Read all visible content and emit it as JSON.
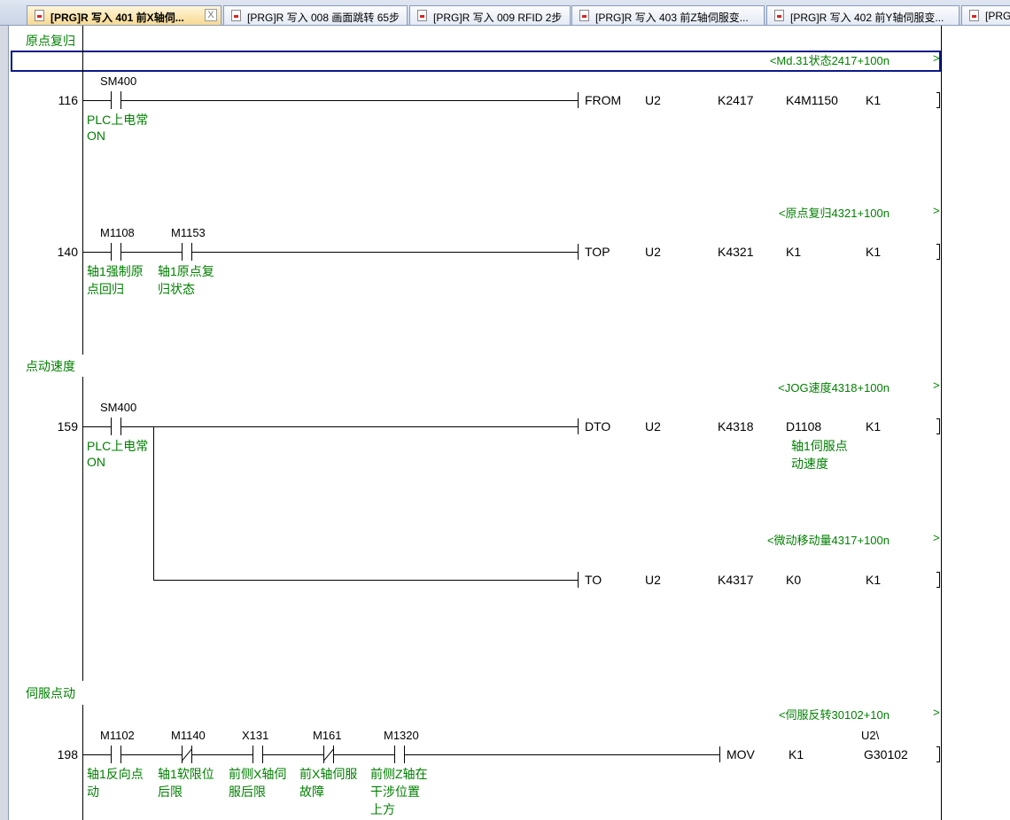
{
  "tabs": [
    {
      "label": "[PRG]R 写入 401 前X轴伺...",
      "active": true,
      "close": "X"
    },
    {
      "label": "[PRG]R 写入 008 画面跳转 65步"
    },
    {
      "label": "[PRG]R 写入 009 RFID 2步"
    },
    {
      "label": "[PRG]R 写入 403 前Z轴伺服变..."
    },
    {
      "label": "[PRG]R 写入 402 前Y轴伺服变..."
    },
    {
      "label": "[PRG"
    }
  ],
  "sections": [
    "原点复归",
    "点动速度",
    "伺服点动"
  ],
  "comments": [
    {
      "text": "<Md.31状态2417+100n",
      "arrow": ">"
    },
    {
      "text": "<原点复归4321+100n",
      "arrow": ">"
    },
    {
      "text": "<JOG速度4318+100n",
      "arrow": ">"
    },
    {
      "text": "<微动移动量4317+100n",
      "arrow": ">"
    },
    {
      "text": "<伺服反转30102+10n",
      "arrow": ">"
    }
  ],
  "rungs": [
    {
      "step": "116",
      "contacts": [
        {
          "dev": "SM400",
          "type": "NO",
          "comment": [
            "PLC上电常",
            "ON"
          ]
        }
      ],
      "instr": [
        "FROM",
        "U2",
        "K2417",
        "K4M1150",
        "K1"
      ]
    },
    {
      "step": "140",
      "contacts": [
        {
          "dev": "M1108",
          "type": "NO",
          "comment": [
            "轴1强制原",
            "点回归"
          ]
        },
        {
          "dev": "M1153",
          "type": "NO",
          "comment": [
            "轴1原点复",
            "归状态"
          ]
        }
      ],
      "instr": [
        "TOP",
        "U2",
        "K4321",
        "K1",
        "K1"
      ]
    },
    {
      "step": "159",
      "contacts": [
        {
          "dev": "SM400",
          "type": "NO",
          "comment": [
            "PLC上电常",
            "ON"
          ]
        }
      ],
      "instr": [
        "DTO",
        "U2",
        "K4318",
        "D1108",
        "K1"
      ],
      "operand_comment": [
        "轴1伺服点",
        "动速度"
      ],
      "branch_instr": [
        "TO",
        "U2",
        "K4317",
        "K0",
        "K1"
      ]
    },
    {
      "step": "198",
      "contacts": [
        {
          "dev": "M1102",
          "type": "NO",
          "comment": [
            "轴1反向点",
            "动"
          ]
        },
        {
          "dev": "M1140",
          "type": "NC",
          "comment": [
            "轴1软限位",
            "后限"
          ]
        },
        {
          "dev": "X131",
          "type": "NO",
          "comment": [
            "前侧X轴伺",
            "服后限"
          ]
        },
        {
          "dev": "M161",
          "type": "NC",
          "comment": [
            "前X轴伺服",
            "故障"
          ]
        },
        {
          "dev": "M1320",
          "type": "NO",
          "comment": [
            "前侧Z轴在",
            "干涉位置",
            "上方"
          ]
        }
      ],
      "instr": [
        "MOV",
        "K1",
        "G30102"
      ],
      "operand_prefix": "U2\\"
    }
  ]
}
